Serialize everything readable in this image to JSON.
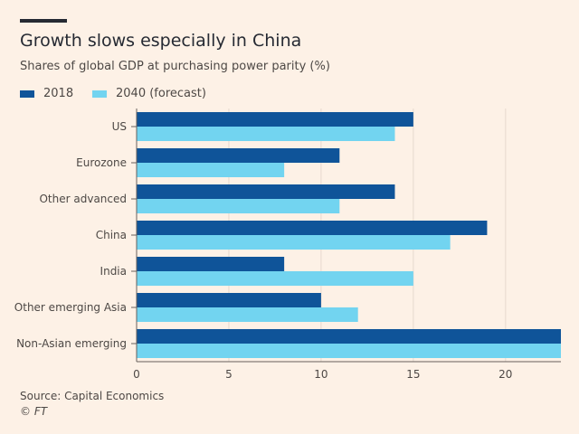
{
  "title": "Growth slows especially in China",
  "subtitle": "Shares of global GDP at purchasing power parity (%)",
  "source": "Source: Capital Economics",
  "credit": "© FT",
  "colors": {
    "background": "#fdf1e6",
    "series_2018": "#0f5499",
    "series_2040": "#72d4f0"
  },
  "chart_data": {
    "type": "bar",
    "orientation": "horizontal",
    "categories": [
      "US",
      "Eurozone",
      "Other advanced",
      "China",
      "India",
      "Other emerging Asia",
      "Non-Asian emerging"
    ],
    "series": [
      {
        "name": "2018",
        "values": [
          15,
          11,
          14,
          19,
          8,
          10,
          23
        ]
      },
      {
        "name": "2040 (forecast)",
        "values": [
          14,
          8,
          11,
          17,
          15,
          12,
          23
        ]
      }
    ],
    "xlim": [
      0,
      23
    ],
    "xticks": [
      0,
      5,
      10,
      15,
      20
    ],
    "legend_position": "top-left"
  }
}
